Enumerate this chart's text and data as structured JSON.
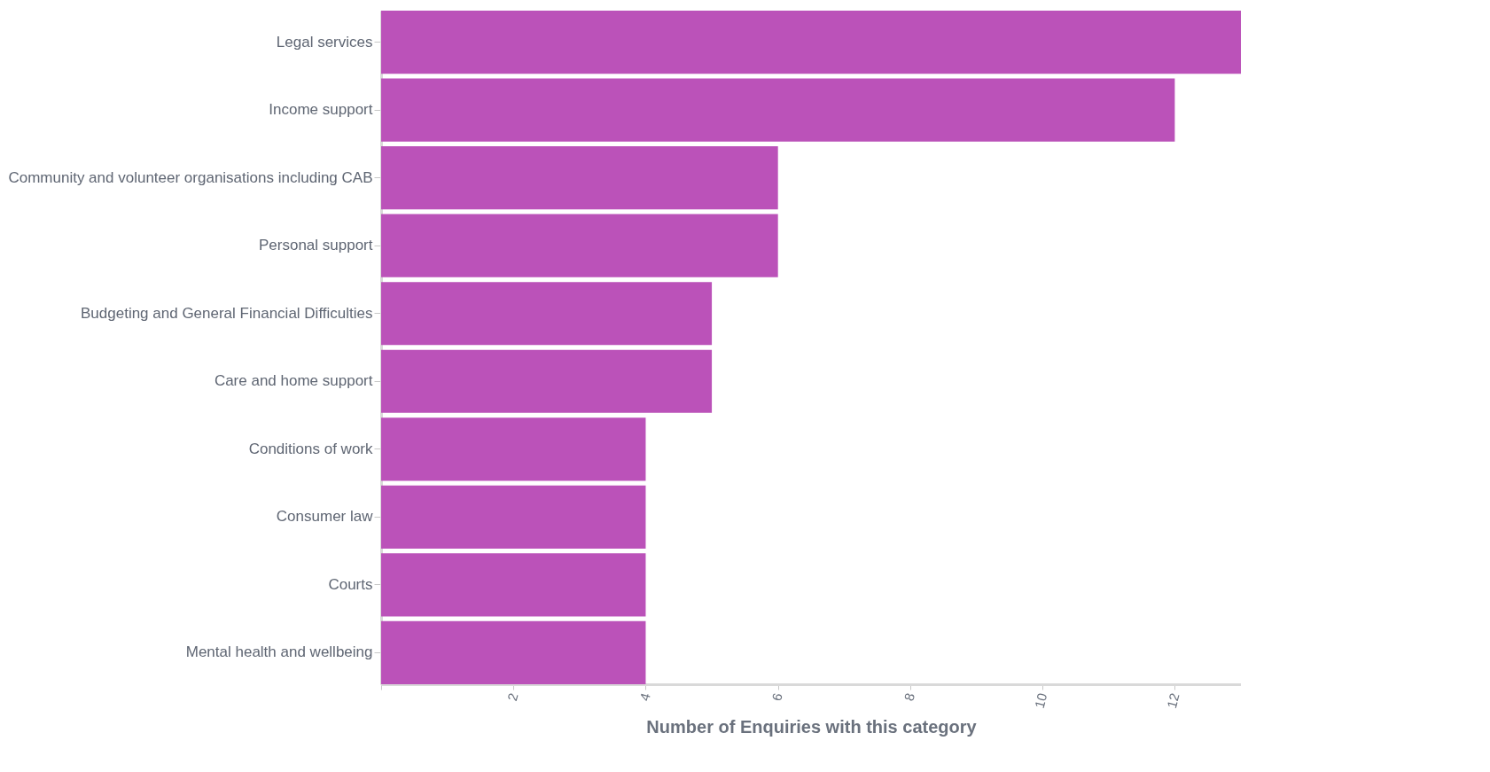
{
  "chart_data": {
    "type": "bar",
    "orientation": "horizontal",
    "xlabel": "Number of Enquiries with this category",
    "categories": [
      "Legal services",
      "Income support",
      "Community and volunteer organisations including CAB",
      "Personal support",
      "Budgeting and General Financial Difficulties",
      "Care and home support",
      "Conditions of work",
      "Consumer law",
      "Courts",
      "Mental health and wellbeing"
    ],
    "values": [
      13,
      12,
      6,
      6,
      5,
      5,
      4,
      4,
      4,
      4
    ],
    "color": "#bb52b9",
    "xlim": [
      0,
      13
    ],
    "xticks": [
      {
        "value": 0,
        "label": null
      },
      2,
      4,
      6,
      8,
      10,
      12
    ],
    "grid": false
  }
}
